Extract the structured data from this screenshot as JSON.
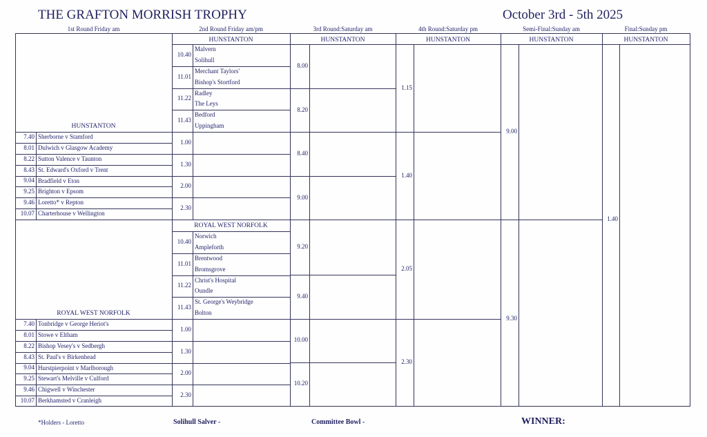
{
  "title": "THE GRAFTON MORRISH TROPHY",
  "dates": "October 3rd - 5th 2025",
  "round_headers": [
    "1st Round Friday am",
    "2nd Round Friday am/pm",
    "3rd Round:Saturday am",
    "4th Round:Saturday pm",
    "Semi-Final:Sunday am",
    "Final:Sunday pm"
  ],
  "venue_headers": [
    "HUNSTANTON",
    "HUNSTANTON",
    "HUNSTANTON",
    "HUNSTANTON",
    "HUNSTANTON"
  ],
  "first_round": {
    "hunstanton_label": "HUNSTANTON",
    "hunstanton": [
      {
        "time": "7.40",
        "match": "Sherborne v Stamford"
      },
      {
        "time": "8.01",
        "match": "Dulwich v Glasgow Academy"
      },
      {
        "time": "8.22",
        "match": "Sutton Valence v Taunton"
      },
      {
        "time": "8.43",
        "match": "St. Edward's Oxford v Trent"
      },
      {
        "time": "9.04",
        "match": "Bradfield v Eton"
      },
      {
        "time": "9.25",
        "match": "Brighton v Epsom"
      },
      {
        "time": "9.46",
        "match": "Loretto* v Repton"
      },
      {
        "time": "10.07",
        "match": "Charterhouse v Wellington"
      }
    ],
    "rwn_label": "ROYAL WEST NORFOLK",
    "rwn": [
      {
        "time": "7.40",
        "match": "Tonbridge v George Heriot's"
      },
      {
        "time": "8.01",
        "match": "Stowe v Eltham"
      },
      {
        "time": "8.22",
        "match": "Bishop Vesey's v Sedbergh"
      },
      {
        "time": "8.43",
        "match": "St. Paul's v Birkenhead"
      },
      {
        "time": "9.04",
        "match": "Hurstpierpoint v Marlborough"
      },
      {
        "time": "9.25",
        "match": "Stewart's Melville v Culford"
      },
      {
        "time": "9.46",
        "match": "Chigwell v Winchester"
      },
      {
        "time": "10.07",
        "match": "Berkhamsted v Cranleigh"
      }
    ]
  },
  "second_round": {
    "hunstanton_seeded": [
      {
        "time": "10.40",
        "teams": [
          "Malvern",
          "Solihull"
        ]
      },
      {
        "time": "11.01",
        "teams": [
          "Merchant Taylors'",
          "Bishop's Stortford"
        ]
      },
      {
        "time": "11.22",
        "teams": [
          "Radley",
          "The Leys"
        ]
      },
      {
        "time": "11.43",
        "teams": [
          "Bedford",
          "Uppingham"
        ]
      }
    ],
    "hunstanton_times": [
      "1.00",
      "1.30",
      "2.00",
      "2.30"
    ],
    "rwn_label": "ROYAL WEST NORFOLK",
    "rwn_seeded": [
      {
        "time": "10.40",
        "teams": [
          "Norwich",
          "Ampleforth"
        ]
      },
      {
        "time": "11.01",
        "teams": [
          "Brentwood",
          "Bromsgrove"
        ]
      },
      {
        "time": "11.22",
        "teams": [
          "Christ's Hospital",
          "Oundle"
        ]
      },
      {
        "time": "11.43",
        "teams": [
          "St. George's Weybridge",
          "Bolton"
        ]
      }
    ],
    "rwn_times": [
      "1.00",
      "1.30",
      "2.00",
      "2.30"
    ]
  },
  "third_round_times": [
    "8.00",
    "8.20",
    "8.40",
    "9.00",
    "9.20",
    "9.40",
    "10.00",
    "10.20"
  ],
  "fourth_round_times": [
    "1.15",
    "1.40",
    "2.05",
    "2.30"
  ],
  "semi_final_times": [
    "9.00",
    "9.30"
  ],
  "final_time": "1.40",
  "footer": {
    "holders": "*Holders - Loretto",
    "salver": "Solihull Salver -",
    "bowl": "Committee Bowl -",
    "winner": "WINNER:"
  },
  "colors": {
    "text": "#23236b",
    "lines": "#33335a"
  }
}
